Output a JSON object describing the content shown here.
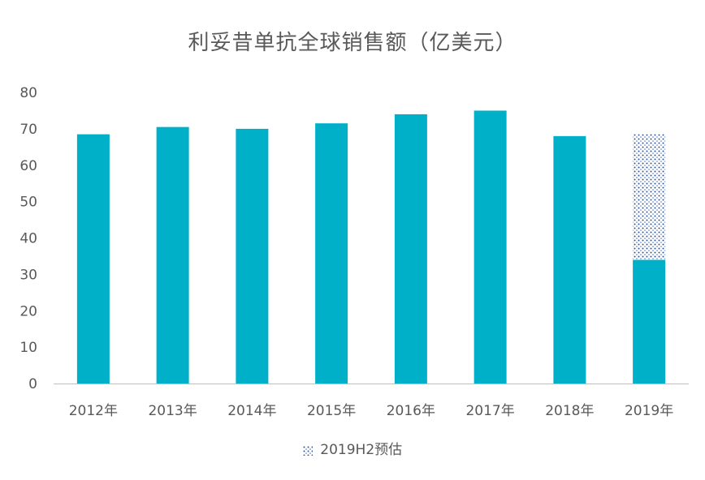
{
  "chart_data": {
    "type": "bar",
    "title": "利妥昔单抗全球销售额（亿美元）",
    "xlabel": "",
    "ylabel": "",
    "categories": [
      "2012年",
      "2013年",
      "2014年",
      "2015年",
      "2016年",
      "2017年",
      "2018年",
      "2019年"
    ],
    "series": [
      {
        "values": [
          68.5,
          70.5,
          70.0,
          71.5,
          74.0,
          75.0,
          68.0,
          34.0
        ],
        "color": "#00B0C8"
      },
      {
        "name": "2019H2预估",
        "values": [
          0,
          0,
          0,
          0,
          0,
          0,
          0,
          34.5
        ],
        "pattern": "dotted",
        "color": "#2F5597"
      }
    ],
    "ylim": [
      0,
      80
    ],
    "yticks": [
      0,
      10,
      20,
      30,
      40,
      50,
      60,
      70,
      80
    ],
    "stacked": true,
    "grid": false,
    "legend": "bottom-center"
  }
}
